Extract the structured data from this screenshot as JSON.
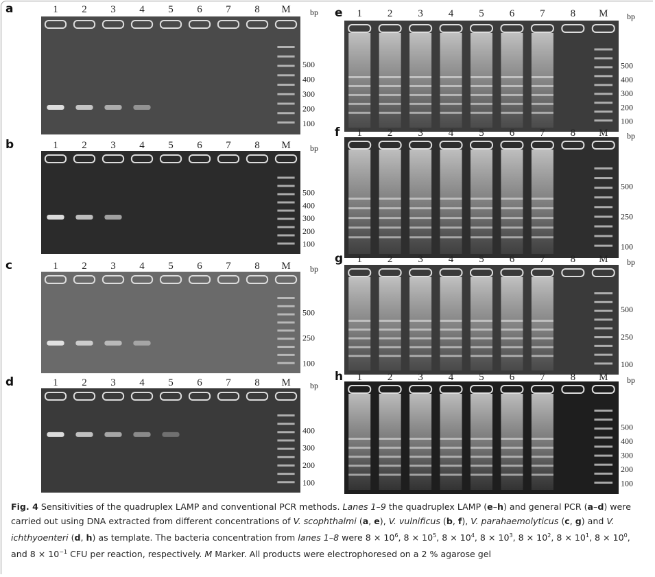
{
  "panels": [
    {
      "letter": "a",
      "lanes": [
        "1",
        "2",
        "3",
        "4",
        "5",
        "6",
        "7",
        "8",
        "M"
      ],
      "unit": "bp",
      "markers": [
        "500",
        "400",
        "300",
        "200",
        "100"
      ]
    },
    {
      "letter": "b",
      "lanes": [
        "1",
        "2",
        "3",
        "4",
        "5",
        "6",
        "7",
        "8",
        "M"
      ],
      "unit": "bp",
      "markers": [
        "500",
        "400",
        "300",
        "200",
        "100"
      ]
    },
    {
      "letter": "c",
      "lanes": [
        "1",
        "2",
        "3",
        "4",
        "5",
        "6",
        "7",
        "8",
        "M"
      ],
      "unit": "bp",
      "markers": [
        "500",
        "250",
        "100"
      ]
    },
    {
      "letter": "d",
      "lanes": [
        "1",
        "2",
        "3",
        "4",
        "5",
        "6",
        "7",
        "8",
        "M"
      ],
      "unit": "bp",
      "markers": [
        "400",
        "300",
        "200",
        "100"
      ]
    },
    {
      "letter": "e",
      "lanes": [
        "1",
        "2",
        "3",
        "4",
        "5",
        "6",
        "7",
        "8",
        "M"
      ],
      "unit": "bp",
      "markers": [
        "500",
        "400",
        "300",
        "200",
        "100"
      ]
    },
    {
      "letter": "f",
      "lanes": [
        "1",
        "2",
        "3",
        "4",
        "5",
        "6",
        "7",
        "8",
        "M"
      ],
      "unit": "bp",
      "markers": [
        "500",
        "250",
        "100"
      ]
    },
    {
      "letter": "g",
      "lanes": [
        "1",
        "2",
        "3",
        "4",
        "5",
        "6",
        "7",
        "8",
        "M"
      ],
      "unit": "bp",
      "markers": [
        "500",
        "250",
        "100"
      ]
    },
    {
      "letter": "h",
      "lanes": [
        "1",
        "2",
        "3",
        "4",
        "5",
        "6",
        "7",
        "8",
        "M"
      ],
      "unit": "bp",
      "markers": [
        "500",
        "400",
        "300",
        "200",
        "100"
      ]
    }
  ],
  "caption": [
    {
      "text": "Fig. 4",
      "style": "b"
    },
    {
      "text": "  Sensitivities of the quadruplex LAMP and conventional PCR methods. "
    },
    {
      "text": "Lanes 1–9",
      "style": "i"
    },
    {
      "text": " the quadruplex LAMP ("
    },
    {
      "text": "e",
      "style": "b"
    },
    {
      "text": "–"
    },
    {
      "text": "h",
      "style": "b"
    },
    {
      "text": ") and general PCR ("
    },
    {
      "text": "a",
      "style": "b"
    },
    {
      "text": "–"
    },
    {
      "text": "d",
      "style": "b"
    },
    {
      "text": ") were carried out using DNA extracted from different concentrations of "
    },
    {
      "text": "V. scophthalmi",
      "style": "i"
    },
    {
      "text": " ("
    },
    {
      "text": "a",
      "style": "b"
    },
    {
      "text": ", "
    },
    {
      "text": "e",
      "style": "b"
    },
    {
      "text": "), "
    },
    {
      "text": "V. vulnificus",
      "style": "i"
    },
    {
      "text": " ("
    },
    {
      "text": "b",
      "style": "b"
    },
    {
      "text": ", "
    },
    {
      "text": "f",
      "style": "b"
    },
    {
      "text": "), "
    },
    {
      "text": "V. parahaemolyticus",
      "style": "i"
    },
    {
      "text": " ("
    },
    {
      "text": "c",
      "style": "b"
    },
    {
      "text": ", "
    },
    {
      "text": "g",
      "style": "b"
    },
    {
      "text": ") and "
    },
    {
      "text": "V. ichthyoenteri",
      "style": "i"
    },
    {
      "text": " ("
    },
    {
      "text": "d",
      "style": "b"
    },
    {
      "text": ", "
    },
    {
      "text": "h",
      "style": "b"
    },
    {
      "text": ") as template. The bacteria concentration from "
    },
    {
      "text": "lanes 1–8",
      "style": "i"
    },
    {
      "text": " were 8 × 10"
    },
    {
      "text": "6",
      "style": "sup"
    },
    {
      "text": ", 8 × 10"
    },
    {
      "text": "5",
      "style": "sup"
    },
    {
      "text": ", 8 × 10"
    },
    {
      "text": "4",
      "style": "sup"
    },
    {
      "text": ", 8 × 10"
    },
    {
      "text": "3",
      "style": "sup"
    },
    {
      "text": ", 8 × 10"
    },
    {
      "text": "2",
      "style": "sup"
    },
    {
      "text": ", 8 × 10"
    },
    {
      "text": "1",
      "style": "sup"
    },
    {
      "text": ", 8 × 10"
    },
    {
      "text": "0",
      "style": "sup"
    },
    {
      "text": ", and 8 × 10"
    },
    {
      "text": "−1",
      "style": "sup"
    },
    {
      "text": " CFU per reaction, respectively. "
    },
    {
      "text": "M",
      "style": "i"
    },
    {
      "text": " Marker. All products were electrophoresed on a 2 % agarose gel"
    }
  ]
}
